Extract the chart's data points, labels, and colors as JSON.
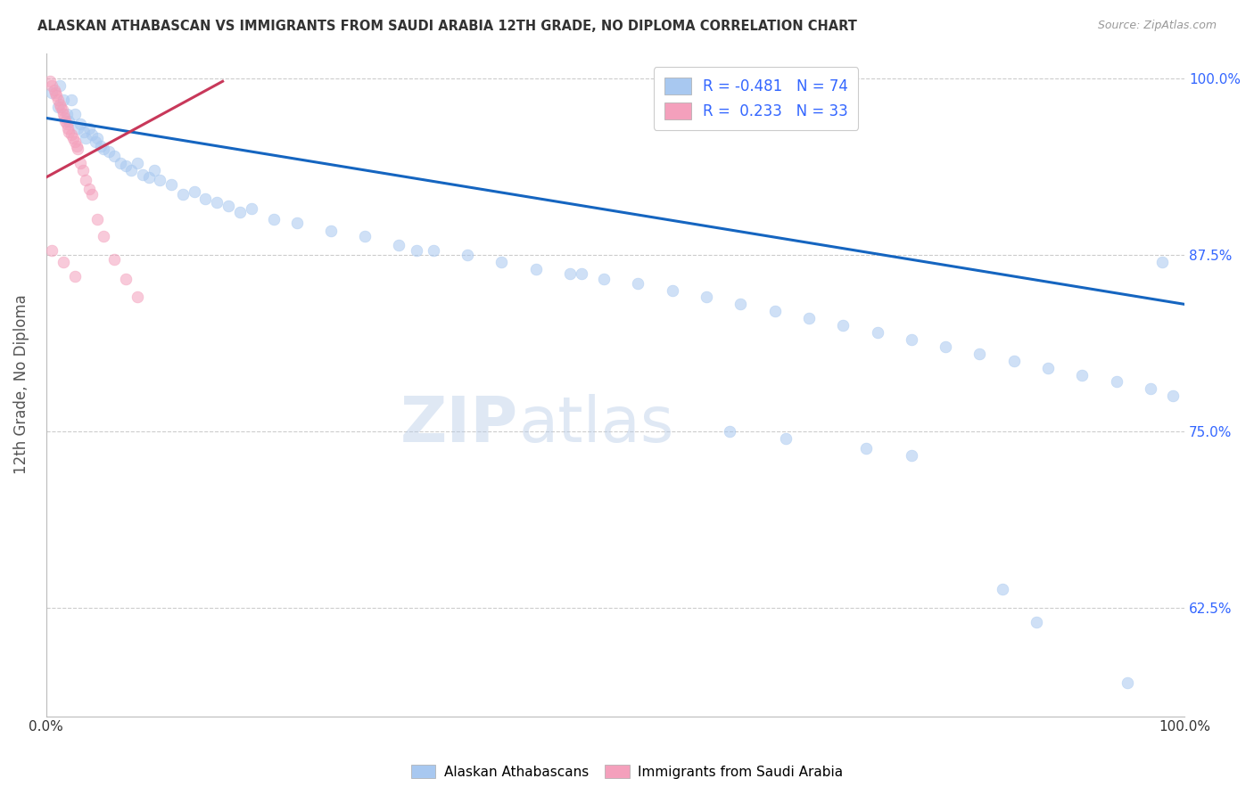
{
  "title": "ALASKAN ATHABASCAN VS IMMIGRANTS FROM SAUDI ARABIA 12TH GRADE, NO DIPLOMA CORRELATION CHART",
  "source": "Source: ZipAtlas.com",
  "ylabel": "12th Grade, No Diploma",
  "blue_R": -0.481,
  "blue_N": 74,
  "pink_R": 0.233,
  "pink_N": 33,
  "blue_label": "Alaskan Athabascans",
  "pink_label": "Immigrants from Saudi Arabia",
  "xmin": 0.0,
  "xmax": 1.0,
  "ymin": 0.548,
  "ymax": 1.018,
  "yticks": [
    0.625,
    0.75,
    0.875,
    1.0
  ],
  "ytick_labels": [
    "62.5%",
    "75.0%",
    "87.5%",
    "100.0%"
  ],
  "blue_line_x0": 0.0,
  "blue_line_x1": 1.0,
  "blue_line_y0": 0.972,
  "blue_line_y1": 0.84,
  "pink_line_x0": 0.0,
  "pink_line_x1": 0.155,
  "pink_line_y0": 0.93,
  "pink_line_y1": 0.998,
  "blue_scatter_x": [
    0.005,
    0.01,
    0.012,
    0.015,
    0.018,
    0.02,
    0.022,
    0.025,
    0.028,
    0.03,
    0.033,
    0.035,
    0.038,
    0.04,
    0.043,
    0.045,
    0.048,
    0.05,
    0.055,
    0.06,
    0.065,
    0.07,
    0.075,
    0.08,
    0.085,
    0.09,
    0.095,
    0.1,
    0.11,
    0.12,
    0.13,
    0.14,
    0.15,
    0.16,
    0.17,
    0.18,
    0.2,
    0.22,
    0.25,
    0.28,
    0.31,
    0.34,
    0.37,
    0.4,
    0.43,
    0.46,
    0.49,
    0.52,
    0.55,
    0.58,
    0.61,
    0.64,
    0.67,
    0.7,
    0.73,
    0.76,
    0.79,
    0.82,
    0.85,
    0.88,
    0.91,
    0.94,
    0.97,
    0.99,
    0.325,
    0.47,
    0.6,
    0.65,
    0.72,
    0.76,
    0.84,
    0.87,
    0.95,
    0.98
  ],
  "blue_scatter_y": [
    0.99,
    0.98,
    0.995,
    0.985,
    0.975,
    0.97,
    0.985,
    0.975,
    0.965,
    0.968,
    0.962,
    0.958,
    0.965,
    0.96,
    0.955,
    0.958,
    0.952,
    0.95,
    0.948,
    0.945,
    0.94,
    0.938,
    0.935,
    0.94,
    0.932,
    0.93,
    0.935,
    0.928,
    0.925,
    0.918,
    0.92,
    0.915,
    0.912,
    0.91,
    0.905,
    0.908,
    0.9,
    0.898,
    0.892,
    0.888,
    0.882,
    0.878,
    0.875,
    0.87,
    0.865,
    0.862,
    0.858,
    0.855,
    0.85,
    0.845,
    0.84,
    0.835,
    0.83,
    0.825,
    0.82,
    0.815,
    0.81,
    0.805,
    0.8,
    0.795,
    0.79,
    0.785,
    0.78,
    0.775,
    0.878,
    0.862,
    0.75,
    0.745,
    0.738,
    0.733,
    0.638,
    0.615,
    0.572,
    0.87
  ],
  "pink_scatter_x": [
    0.003,
    0.005,
    0.007,
    0.008,
    0.009,
    0.01,
    0.012,
    0.013,
    0.014,
    0.015,
    0.016,
    0.017,
    0.018,
    0.019,
    0.02,
    0.022,
    0.024,
    0.025,
    0.027,
    0.028,
    0.03,
    0.032,
    0.035,
    0.038,
    0.04,
    0.045,
    0.05,
    0.06,
    0.07,
    0.08,
    0.005,
    0.015,
    0.025
  ],
  "pink_scatter_y": [
    0.998,
    0.995,
    0.992,
    0.99,
    0.988,
    0.985,
    0.982,
    0.98,
    0.978,
    0.975,
    0.972,
    0.97,
    0.968,
    0.965,
    0.962,
    0.96,
    0.958,
    0.955,
    0.952,
    0.95,
    0.94,
    0.935,
    0.928,
    0.922,
    0.918,
    0.9,
    0.888,
    0.872,
    0.858,
    0.845,
    0.878,
    0.87,
    0.86
  ],
  "scatter_size": 85,
  "scatter_alpha": 0.55,
  "blue_color": "#A8C8F0",
  "pink_color": "#F4A0BC",
  "blue_line_color": "#1565C0",
  "pink_line_color": "#C8385A",
  "grid_color": "#CCCCCC",
  "title_color": "#333333",
  "axis_label_color": "#555555",
  "right_axis_color": "#3366FF",
  "watermark_zip": "ZIP",
  "watermark_atlas": "atlas",
  "background_color": "#FFFFFF"
}
